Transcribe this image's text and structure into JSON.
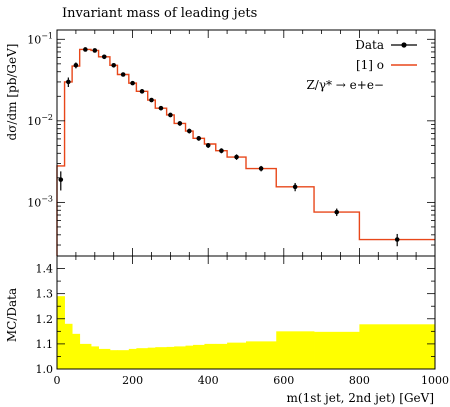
{
  "chart_data": [
    {
      "type": "line",
      "panel": "main",
      "title": "Invariant mass of leading jets",
      "ylabel": "dσ/dm [pb/GeV]",
      "yscale": "log",
      "xlim": [
        0,
        1000
      ],
      "ylim": [
        0.00022,
        0.13
      ],
      "y_tick_labels": [
        "10^-3",
        "10^-2",
        "10^-1"
      ],
      "grid": false,
      "legend": "top-right",
      "legend_entries": [
        "Data",
        "[1] o"
      ],
      "annotation": "Z/γ* → e+e−",
      "series": [
        {
          "name": "Data",
          "style": "points-with-errors",
          "color": "#000000",
          "x": [
            10,
            30,
            50,
            75,
            100,
            125,
            150,
            175,
            200,
            225,
            250,
            275,
            300,
            325,
            350,
            375,
            400,
            435,
            475,
            540,
            630,
            740,
            900
          ],
          "y": [
            0.0019,
            0.03,
            0.048,
            0.075,
            0.073,
            0.061,
            0.048,
            0.037,
            0.029,
            0.023,
            0.018,
            0.0143,
            0.0118,
            0.0093,
            0.0075,
            0.0061,
            0.005,
            0.0043,
            0.0036,
            0.0026,
            0.00155,
            0.00076,
            0.00035
          ],
          "yerr": [
            0.0005,
            0.004,
            0.004,
            0.004,
            0.004,
            0.003,
            0.0025,
            0.002,
            0.0015,
            0.0012,
            0.001,
            0.0008,
            0.0007,
            0.0006,
            0.0005,
            0.0004,
            0.00035,
            0.0003,
            0.00028,
            0.0002,
            0.00018,
            8e-05,
            6e-05
          ]
        },
        {
          "name": "[1] o",
          "style": "step",
          "color": "#e8471a",
          "edges": [
            0,
            20,
            40,
            60,
            90,
            110,
            140,
            160,
            190,
            210,
            240,
            260,
            290,
            310,
            340,
            360,
            390,
            420,
            450,
            500,
            580,
            680,
            800,
            1000
          ],
          "values": [
            0.0028,
            0.03,
            0.047,
            0.075,
            0.073,
            0.061,
            0.048,
            0.037,
            0.029,
            0.023,
            0.018,
            0.0143,
            0.0118,
            0.0093,
            0.0075,
            0.0061,
            0.0052,
            0.0043,
            0.0036,
            0.0026,
            0.00155,
            0.00076,
            0.00035
          ]
        }
      ]
    },
    {
      "type": "area",
      "panel": "ratio",
      "xlabel": "m(1st jet, 2nd jet) [GeV]",
      "ylabel": "MC/Data",
      "xlim": [
        0,
        1000
      ],
      "ylim": [
        1.0,
        1.45
      ],
      "x_ticks": [
        0,
        200,
        400,
        600,
        800,
        1000
      ],
      "y_ticks": [
        1.0,
        1.1,
        1.2,
        1.3,
        1.4
      ],
      "color": "#ffff00",
      "edges": [
        0,
        20,
        40,
        60,
        90,
        110,
        140,
        160,
        190,
        210,
        240,
        260,
        290,
        310,
        340,
        360,
        390,
        420,
        450,
        500,
        580,
        680,
        800,
        1000
      ],
      "values": [
        1.29,
        1.18,
        1.14,
        1.1,
        1.09,
        1.08,
        1.075,
        1.075,
        1.08,
        1.083,
        1.085,
        1.087,
        1.088,
        1.09,
        1.093,
        1.096,
        1.1,
        1.1,
        1.105,
        1.11,
        1.15,
        1.148,
        1.178
      ]
    }
  ]
}
